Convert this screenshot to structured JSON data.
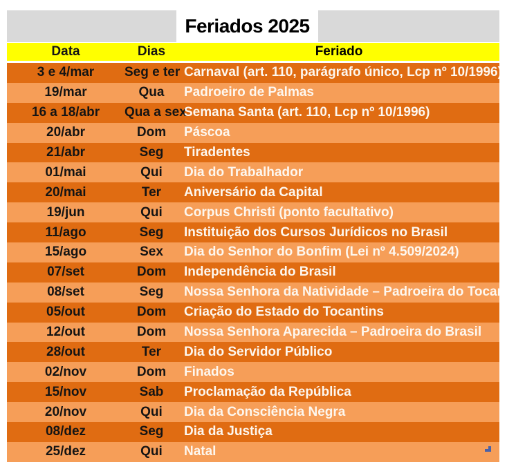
{
  "title": "Feriados 2025",
  "columns": [
    "Data",
    "Dias",
    "Feriado"
  ],
  "rows": [
    {
      "date": "3 e 4/mar",
      "days": "Seg e ter",
      "holiday": "Carnaval (art. 110, parágrafo único, Lcp nº 10/1996)"
    },
    {
      "date": "19/mar",
      "days": "Qua",
      "holiday": "Padroeiro de Palmas"
    },
    {
      "date": "16 a 18/abr",
      "days": "Qua a sex",
      "holiday": "Semana Santa (art. 110, Lcp nº 10/1996)"
    },
    {
      "date": "20/abr",
      "days": "Dom",
      "holiday": "Páscoa"
    },
    {
      "date": "21/abr",
      "days": "Seg",
      "holiday": "Tiradentes"
    },
    {
      "date": "01/mai",
      "days": "Qui",
      "holiday": "Dia do Trabalhador"
    },
    {
      "date": "20/mai",
      "days": "Ter",
      "holiday": "Aniversário da Capital"
    },
    {
      "date": "19/jun",
      "days": "Qui",
      "holiday": "Corpus Christi (ponto facultativo)"
    },
    {
      "date": "11/ago",
      "days": "Seg",
      "holiday": "Instituição dos Cursos Jurídicos no Brasil"
    },
    {
      "date": "15/ago",
      "days": "Sex",
      "holiday": "Dia do Senhor do Bonfim (Lei nº 4.509/2024)"
    },
    {
      "date": "07/set",
      "days": "Dom",
      "holiday": "Independência do Brasil"
    },
    {
      "date": "08/set",
      "days": "Seg",
      "holiday": "Nossa Senhora da Natividade – Padroeira do Tocantins"
    },
    {
      "date": "05/out",
      "days": "Dom",
      "holiday": "Criação do Estado do Tocantins"
    },
    {
      "date": "12/out",
      "days": "Dom",
      "holiday": "Nossa Senhora Aparecida – Padroeira do Brasil"
    },
    {
      "date": "28/out",
      "days": "Ter",
      "holiday": "Dia do Servidor Público"
    },
    {
      "date": "02/nov",
      "days": "Dom",
      "holiday": "Finados"
    },
    {
      "date": "15/nov",
      "days": "Sab",
      "holiday": "Proclamação da República"
    },
    {
      "date": "20/nov",
      "days": "Qui",
      "holiday": "Dia da Consciência Negra"
    },
    {
      "date": "08/dez",
      "days": "Seg",
      "holiday": "Dia da Justiça"
    },
    {
      "date": "25/dez",
      "days": "Qui",
      "holiday": "Natal"
    }
  ],
  "icons": {
    "corner": "resize-corner-icon"
  },
  "colors": {
    "page_bg": "#FFFFFF",
    "title_bar_bg": "#D9D9D9",
    "title_box_bg": "#FFFFFF",
    "header_bg": "#FFFF00",
    "row_dark": "#E06C12",
    "row_light": "#F69E58",
    "text_dark": "#141414",
    "holiday_text": "#FDF7EF",
    "corner_blue": "#4A62A8"
  }
}
